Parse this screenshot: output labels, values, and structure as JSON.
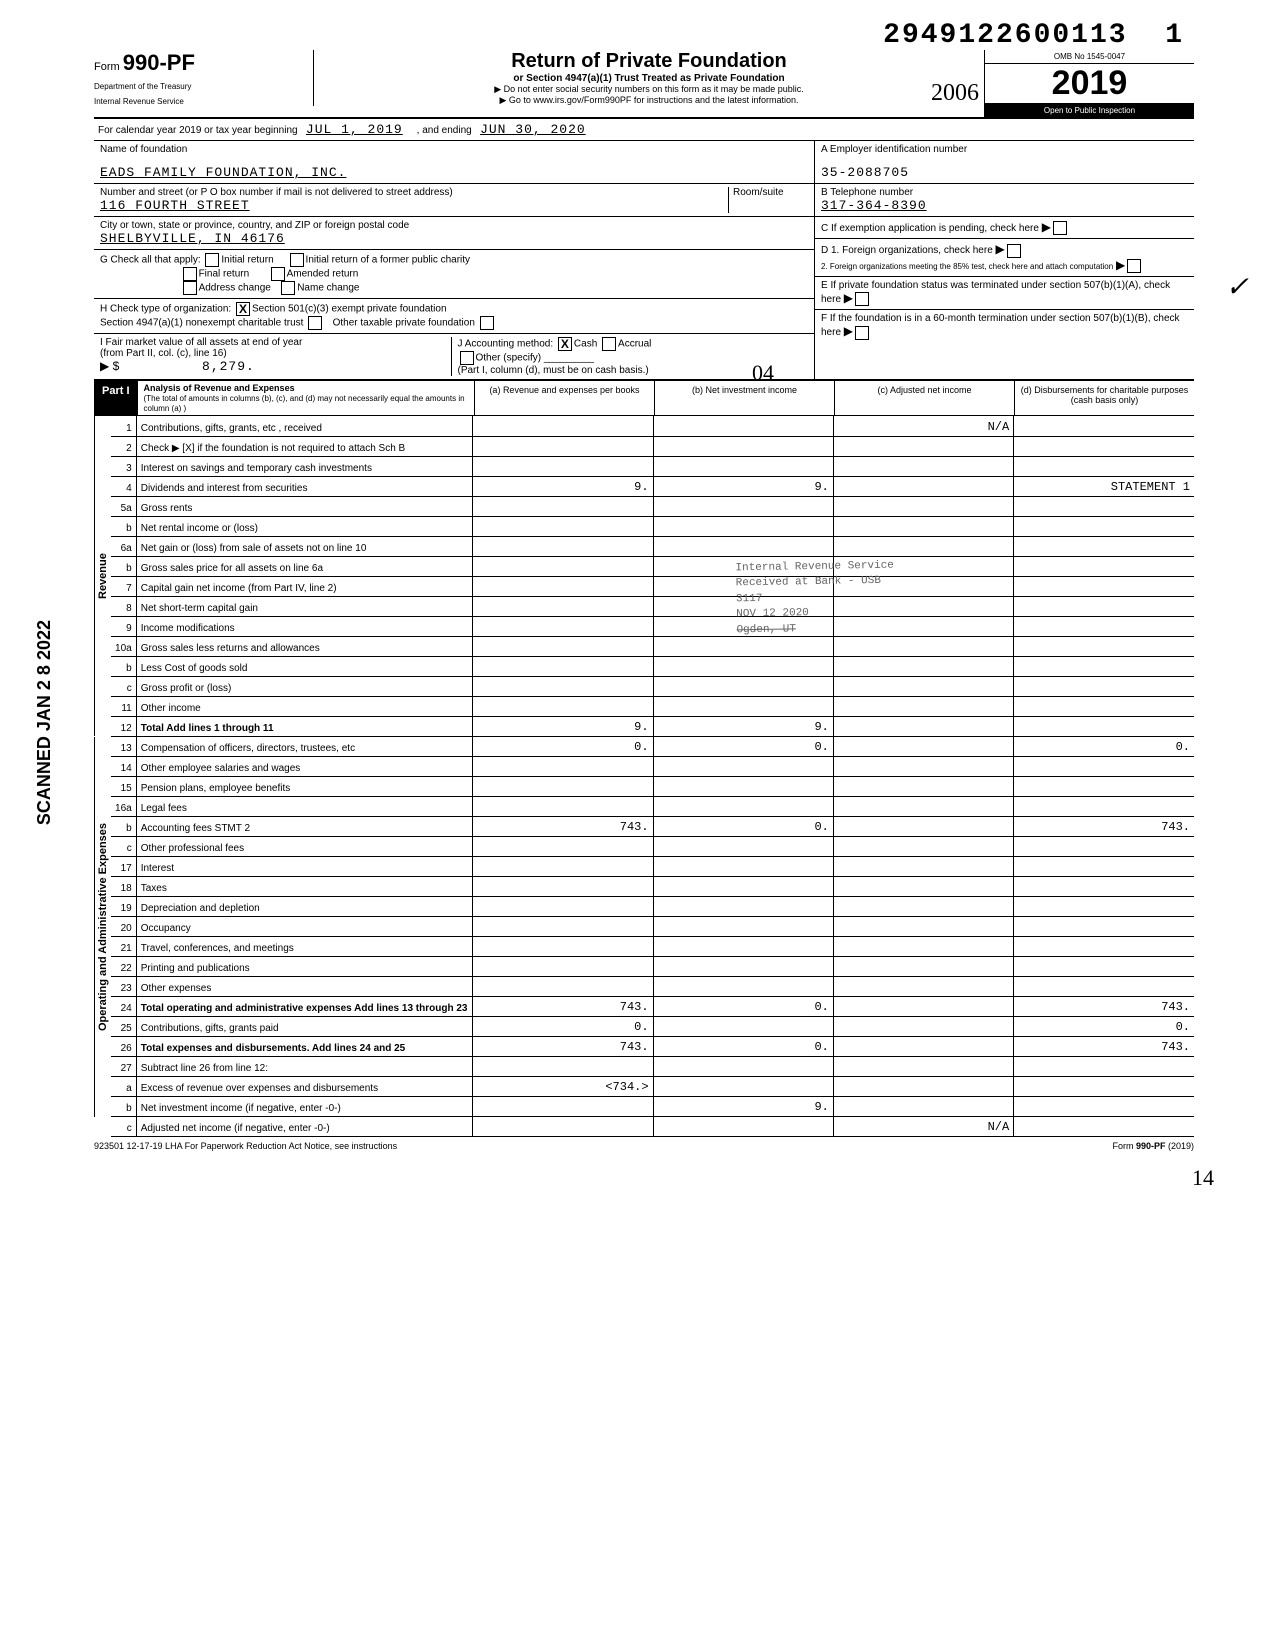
{
  "header": {
    "dln": "2949122600113",
    "dln_suffix": "1",
    "form_label": "Form",
    "form_number": "990-PF",
    "dept1": "Department of the Treasury",
    "dept2": "Internal Revenue Service",
    "title": "Return of Private Foundation",
    "subtitle": "or Section 4947(a)(1) Trust Treated as Private Foundation",
    "note1": "▶ Do not enter social security numbers on this form as it may be made public.",
    "note2": "▶ Go to www.irs.gov/Form990PF for instructions and the latest information.",
    "omb": "OMB No  1545-0047",
    "year": "2019",
    "inspection": "Open to Public Inspection",
    "hand_year": "2006"
  },
  "calendar": {
    "prefix": "For calendar year 2019 or tax year beginning",
    "begin": "JUL 1, 2019",
    "mid": ", and ending",
    "end": "JUN 30, 2020"
  },
  "foundation": {
    "name_label": "Name of foundation",
    "name": "EADS FAMILY FOUNDATION, INC.",
    "addr_label": "Number and street (or P O  box number if mail is not delivered to street address)",
    "room_label": "Room/suite",
    "street": "116 FOURTH STREET",
    "city_label": "City or town, state or province, country, and ZIP or foreign postal code",
    "city": "SHELBYVILLE, IN  46176",
    "ein_label": "A  Employer identification number",
    "ein": "35-2088705",
    "phone_label": "B  Telephone number",
    "phone": "317-364-8390",
    "c_label": "C  If exemption application is pending, check here",
    "d1_label": "D  1. Foreign organizations, check here",
    "d2_label": "2. Foreign organizations meeting the 85% test, check here and attach computation",
    "e_label": "E  If private foundation status was terminated under section 507(b)(1)(A), check here",
    "f_label": "F  If the foundation is in a 60-month termination under section 507(b)(1)(B), check here"
  },
  "g": {
    "label": "G  Check all that apply:",
    "opts": [
      "Initial return",
      "Final return",
      "Address change",
      "Initial return of a former public charity",
      "Amended return",
      "Name change"
    ]
  },
  "h": {
    "label": "H  Check type of organization:",
    "opt1": "Section 501(c)(3) exempt private foundation",
    "opt1_checked": "X",
    "opt2": "Section 4947(a)(1) nonexempt charitable trust",
    "opt3": "Other taxable private foundation"
  },
  "i": {
    "label": "I  Fair market value of all assets at end of year",
    "sub": "(from Part II, col. (c), line 16)",
    "arrow": "▶ $",
    "value": "8,279."
  },
  "j": {
    "label": "J  Accounting method:",
    "cash": "Cash",
    "cash_checked": "X",
    "accrual": "Accrual",
    "other": "Other (specify)",
    "note": "(Part I, column (d), must be on cash basis.)"
  },
  "part1": {
    "label": "Part I",
    "title": "Analysis of Revenue and Expenses",
    "sub": "(The total of amounts in columns (b), (c), and (d) may not necessarily equal the amounts in column (a) )",
    "col_a": "(a) Revenue and expenses per books",
    "col_b": "(b) Net investment income",
    "col_c": "(c) Adjusted net income",
    "col_d": "(d) Disbursements for charitable purposes (cash basis only)"
  },
  "sections": {
    "revenue": "Revenue",
    "expenses": "Operating and Administrative Expenses"
  },
  "rows": [
    {
      "n": "1",
      "t": "Contributions, gifts, grants, etc , received",
      "a": "",
      "b": "",
      "c": "N/A",
      "d": ""
    },
    {
      "n": "2",
      "t": "Check ▶ [X] if the foundation is not required to attach Sch  B",
      "a": "",
      "b": "",
      "c": "",
      "d": ""
    },
    {
      "n": "3",
      "t": "Interest on savings and temporary cash investments",
      "a": "",
      "b": "",
      "c": "",
      "d": ""
    },
    {
      "n": "4",
      "t": "Dividends and interest from securities",
      "a": "9.",
      "b": "9.",
      "c": "",
      "d": "STATEMENT 1"
    },
    {
      "n": "5a",
      "t": "Gross rents",
      "a": "",
      "b": "",
      "c": "",
      "d": ""
    },
    {
      "n": "b",
      "t": "Net rental income or (loss)",
      "a": "",
      "b": "",
      "c": "",
      "d": ""
    },
    {
      "n": "6a",
      "t": "Net gain or (loss) from sale of assets not on line 10",
      "a": "",
      "b": "",
      "c": "",
      "d": ""
    },
    {
      "n": "b",
      "t": "Gross sales price for all assets on line 6a",
      "a": "",
      "b": "",
      "c": "",
      "d": ""
    },
    {
      "n": "7",
      "t": "Capital gain net income (from Part IV, line 2)",
      "a": "",
      "b": "",
      "c": "",
      "d": ""
    },
    {
      "n": "8",
      "t": "Net short-term capital gain",
      "a": "",
      "b": "",
      "c": "",
      "d": ""
    },
    {
      "n": "9",
      "t": "Income modifications",
      "a": "",
      "b": "",
      "c": "",
      "d": ""
    },
    {
      "n": "10a",
      "t": "Gross sales less returns and allowances",
      "a": "",
      "b": "",
      "c": "",
      "d": ""
    },
    {
      "n": "b",
      "t": "Less  Cost of goods sold",
      "a": "",
      "b": "",
      "c": "",
      "d": ""
    },
    {
      "n": "c",
      "t": "Gross profit or (loss)",
      "a": "",
      "b": "",
      "c": "",
      "d": ""
    },
    {
      "n": "11",
      "t": "Other income",
      "a": "",
      "b": "",
      "c": "",
      "d": ""
    },
    {
      "n": "12",
      "t": "Total  Add lines 1 through 11",
      "a": "9.",
      "b": "9.",
      "c": "",
      "d": "",
      "bold": true
    },
    {
      "n": "13",
      "t": "Compensation of officers, directors, trustees, etc",
      "a": "0.",
      "b": "0.",
      "c": "",
      "d": "0."
    },
    {
      "n": "14",
      "t": "Other employee salaries and wages",
      "a": "",
      "b": "",
      "c": "",
      "d": ""
    },
    {
      "n": "15",
      "t": "Pension plans, employee benefits",
      "a": "",
      "b": "",
      "c": "",
      "d": ""
    },
    {
      "n": "16a",
      "t": "Legal fees",
      "a": "",
      "b": "",
      "c": "",
      "d": ""
    },
    {
      "n": "b",
      "t": "Accounting fees                    STMT 2",
      "a": "743.",
      "b": "0.",
      "c": "",
      "d": "743."
    },
    {
      "n": "c",
      "t": "Other professional fees",
      "a": "",
      "b": "",
      "c": "",
      "d": ""
    },
    {
      "n": "17",
      "t": "Interest",
      "a": "",
      "b": "",
      "c": "",
      "d": ""
    },
    {
      "n": "18",
      "t": "Taxes",
      "a": "",
      "b": "",
      "c": "",
      "d": ""
    },
    {
      "n": "19",
      "t": "Depreciation and depletion",
      "a": "",
      "b": "",
      "c": "",
      "d": ""
    },
    {
      "n": "20",
      "t": "Occupancy",
      "a": "",
      "b": "",
      "c": "",
      "d": ""
    },
    {
      "n": "21",
      "t": "Travel, conferences, and meetings",
      "a": "",
      "b": "",
      "c": "",
      "d": ""
    },
    {
      "n": "22",
      "t": "Printing and publications",
      "a": "",
      "b": "",
      "c": "",
      "d": ""
    },
    {
      "n": "23",
      "t": "Other expenses",
      "a": "",
      "b": "",
      "c": "",
      "d": ""
    },
    {
      "n": "24",
      "t": "Total operating and administrative expenses  Add lines 13 through 23",
      "a": "743.",
      "b": "0.",
      "c": "",
      "d": "743.",
      "bold": true
    },
    {
      "n": "25",
      "t": "Contributions, gifts, grants paid",
      "a": "0.",
      "b": "",
      "c": "",
      "d": "0."
    },
    {
      "n": "26",
      "t": "Total expenses and disbursements. Add lines 24 and 25",
      "a": "743.",
      "b": "0.",
      "c": "",
      "d": "743.",
      "bold": true
    },
    {
      "n": "27",
      "t": "Subtract line 26 from line 12:",
      "a": "",
      "b": "",
      "c": "",
      "d": ""
    },
    {
      "n": "a",
      "t": "Excess of revenue over expenses and disbursements",
      "a": "<734.>",
      "b": "",
      "c": "",
      "d": ""
    },
    {
      "n": "b",
      "t": "Net investment income (if negative, enter -0-)",
      "a": "",
      "b": "9.",
      "c": "",
      "d": ""
    },
    {
      "n": "c",
      "t": "Adjusted net income (if negative, enter -0-)",
      "a": "",
      "b": "",
      "c": "N/A",
      "d": ""
    }
  ],
  "footer": {
    "left": "923501  12-17-19   LHA  For Paperwork Reduction Act Notice, see instructions",
    "right": "Form 990-PF (2019)"
  },
  "scanned": "SCANNED JAN 2 8 2022",
  "page_num": "14",
  "hand_04": "04",
  "stamp": {
    "l1": "Internal Revenue Service",
    "l2": "Received at Bank - USB",
    "l3": "3117",
    "l4": "NOV 12 2020",
    "l5": "Ogden, UT"
  },
  "check_mark": "✓"
}
